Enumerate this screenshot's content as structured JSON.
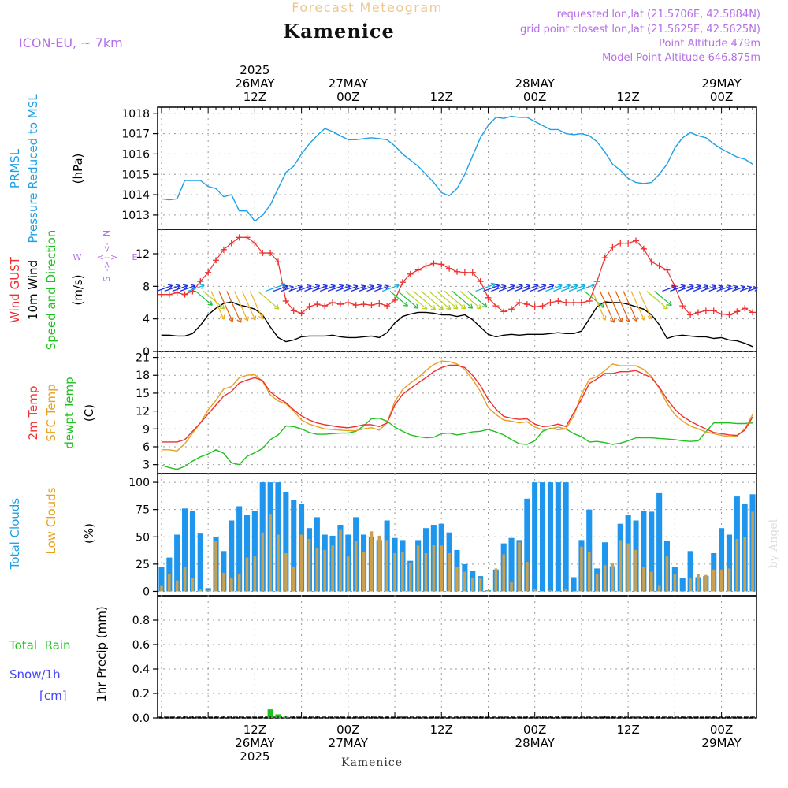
{
  "header": {
    "forecast_title": "Forecast Meteogram",
    "location": "Kamenice",
    "model": "ICON-EU, ~ 7km",
    "requested": "requested lon,lat (21.5706E, 42.5884N)",
    "grid_point": "grid point closest lon,lat (21.5625E, 42.5625N)",
    "point_altitude": "Point Altitude 479m",
    "model_altitude": "Model Point Altitude 646.875m",
    "footer_location": "Kamenice",
    "watermark": "by Angel"
  },
  "colors": {
    "pressure": "#1ea0e6",
    "gust": "#ee3030",
    "wind": "#000000",
    "temp2m": "#ee3030",
    "sfc_temp": "#e8a020",
    "dewpoint": "#20c020",
    "total_clouds": "#1e96ee",
    "low_clouds": "#c8a050",
    "rain": "#20c020",
    "snow": "#4444ff",
    "purple": "#b46ee6"
  },
  "time_axis": {
    "top_labels": [
      {
        "t": 12,
        "lines": [
          "2025",
          "26MAY",
          "12Z"
        ]
      },
      {
        "t": 24,
        "lines": [
          "27MAY",
          "00Z"
        ]
      },
      {
        "t": 36,
        "lines": [
          "12Z"
        ]
      },
      {
        "t": 48,
        "lines": [
          "28MAY",
          "00Z"
        ]
      },
      {
        "t": 60,
        "lines": [
          "12Z"
        ]
      },
      {
        "t": 72,
        "lines": [
          "29MAY",
          "00Z"
        ]
      }
    ],
    "bottom_labels": [
      {
        "t": 12,
        "lines": [
          "12Z",
          "26MAY",
          "2025"
        ]
      },
      {
        "t": 24,
        "lines": [
          "00Z",
          "27MAY"
        ]
      },
      {
        "t": 36,
        "lines": [
          "12Z"
        ]
      },
      {
        "t": 48,
        "lines": [
          "00Z",
          "28MAY"
        ]
      },
      {
        "t": 60,
        "lines": [
          "12Z"
        ]
      },
      {
        "t": 72,
        "lines": [
          "00Z",
          "29MAY"
        ]
      }
    ]
  },
  "panels": {
    "pressure": {
      "labels": [
        "PRMSL",
        "Pressure Reduced to MSL"
      ],
      "unit": "(hPa)"
    },
    "wind": {
      "gust_label": "Wind GUST",
      "wind_label": "10m Wind",
      "dir_label": "Speed and Direction",
      "unit": "(m/s)",
      "compass": {
        "n": "N",
        "s": "S",
        "e": "E",
        "w": "W"
      }
    },
    "temp": {
      "t2m_label": "2m Temp",
      "sfc_label": "SFC Temp",
      "dew_label": "dewpt Temp",
      "unit": "(C)"
    },
    "clouds": {
      "total_label": "Total Clouds",
      "low_label": "Low Clouds",
      "unit": "(%)"
    },
    "precip": {
      "rain_label": "Total  Rain",
      "snow_label": "Snow/1h",
      "cm_label": "[cm]",
      "axis_label": "1hr Precip (mm)"
    }
  },
  "chart_data": [
    {
      "type": "line",
      "name": "pressure",
      "ylabel": "(hPa)",
      "ylim": [
        1012.3,
        1018.3
      ],
      "yticks": [
        1013,
        1014,
        1015,
        1016,
        1017,
        1018
      ],
      "grid": true,
      "x": [
        0,
        1,
        2,
        3,
        4,
        5,
        6,
        7,
        8,
        9,
        10,
        11,
        12,
        13,
        14,
        15,
        16,
        17,
        18,
        19,
        20,
        21,
        22,
        23,
        24,
        25,
        26,
        27,
        28,
        29,
        30,
        31,
        32,
        33,
        34,
        35,
        36,
        37,
        38,
        39,
        40,
        41,
        42,
        43,
        44,
        45,
        46,
        47,
        48,
        49,
        50,
        51,
        52,
        53,
        54,
        55,
        56,
        57,
        58,
        59,
        60,
        61,
        62,
        63,
        64,
        65,
        66,
        67,
        68,
        69,
        70,
        71,
        72,
        73,
        74,
        75,
        76
      ],
      "series": [
        {
          "name": "PRMSL",
          "values": [
            1013.8,
            1013.75,
            1013.8,
            1014.7,
            1014.7,
            1014.7,
            1014.4,
            1014.3,
            1013.9,
            1014.0,
            1013.2,
            1013.2,
            1012.7,
            1013.0,
            1013.5,
            1014.3,
            1015.1,
            1015.4,
            1016.0,
            1016.5,
            1016.9,
            1017.25,
            1017.1,
            1016.9,
            1016.7,
            1016.7,
            1016.75,
            1016.8,
            1016.75,
            1016.7,
            1016.4,
            1016.0,
            1015.7,
            1015.4,
            1015.0,
            1014.6,
            1014.1,
            1013.95,
            1014.3,
            1015.0,
            1015.9,
            1016.8,
            1017.4,
            1017.8,
            1017.75,
            1017.85,
            1017.8,
            1017.8,
            1017.6,
            1017.4,
            1017.2,
            1017.2,
            1017.0,
            1016.95,
            1017.0,
            1016.9,
            1016.6,
            1016.1,
            1015.5,
            1015.2,
            1014.8,
            1014.6,
            1014.55,
            1014.6,
            1015.0,
            1015.5,
            1016.3,
            1016.8,
            1017.05,
            1016.9,
            1016.8,
            1016.5,
            1016.25,
            1016.05,
            1015.85,
            1015.75,
            1015.5
          ]
        }
      ]
    },
    {
      "type": "line",
      "name": "wind",
      "ylabel": "(m/s)",
      "ylim": [
        0,
        15
      ],
      "yticks": [
        0,
        4,
        8,
        12
      ],
      "grid": true,
      "x": [
        0,
        1,
        2,
        3,
        4,
        5,
        6,
        7,
        8,
        9,
        10,
        11,
        12,
        13,
        14,
        15,
        16,
        17,
        18,
        19,
        20,
        21,
        22,
        23,
        24,
        25,
        26,
        27,
        28,
        29,
        30,
        31,
        32,
        33,
        34,
        35,
        36,
        37,
        38,
        39,
        40,
        41,
        42,
        43,
        44,
        45,
        46,
        47,
        48,
        49,
        50,
        51,
        52,
        53,
        54,
        55,
        56,
        57,
        58,
        59,
        60,
        61,
        62,
        63,
        64,
        65,
        66,
        67,
        68,
        69,
        70,
        71,
        72,
        73,
        74,
        75,
        76
      ],
      "series": [
        {
          "name": "Wind GUST",
          "values": [
            7.0,
            7.0,
            7.2,
            7.0,
            7.4,
            8.6,
            9.7,
            11.2,
            12.5,
            13.3,
            14.0,
            14.0,
            13.3,
            12.1,
            12.1,
            11.0,
            6.2,
            5.0,
            4.7,
            5.5,
            5.8,
            5.6,
            6.0,
            5.8,
            6.0,
            5.7,
            5.8,
            5.7,
            5.9,
            5.6,
            6.3,
            8.5,
            9.5,
            10.0,
            10.5,
            10.8,
            10.7,
            10.2,
            9.8,
            9.7,
            9.7,
            8.6,
            6.6,
            5.6,
            4.9,
            5.2,
            6.0,
            5.8,
            5.5,
            5.6,
            6.0,
            6.2,
            6.0,
            6.0,
            6.0,
            6.2,
            8.6,
            11.5,
            12.8,
            13.3,
            13.3,
            13.6,
            12.6,
            11.0,
            10.5,
            10.0,
            8.0,
            5.6,
            4.5,
            4.8,
            5.0,
            5.0,
            4.6,
            4.5,
            4.9,
            5.3,
            4.8
          ]
        },
        {
          "name": "10m Wind",
          "values": [
            2.0,
            2.0,
            1.9,
            1.9,
            2.2,
            3.2,
            4.5,
            5.3,
            5.9,
            6.1,
            5.7,
            5.5,
            5.2,
            4.5,
            3.0,
            1.7,
            1.2,
            1.4,
            1.8,
            1.9,
            1.9,
            1.9,
            2.0,
            1.8,
            1.7,
            1.7,
            1.8,
            1.9,
            1.7,
            2.3,
            3.5,
            4.3,
            4.6,
            4.8,
            4.8,
            4.7,
            4.5,
            4.5,
            4.3,
            4.5,
            3.9,
            3.0,
            2.1,
            1.8,
            2.0,
            2.1,
            2.0,
            2.1,
            2.1,
            2.1,
            2.2,
            2.3,
            2.2,
            2.2,
            2.5,
            4.0,
            5.5,
            6.1,
            6.0,
            6.0,
            5.8,
            5.5,
            5.2,
            4.5,
            3.3,
            1.6,
            1.9,
            2.0,
            1.9,
            1.8,
            1.8,
            1.6,
            1.7,
            1.4,
            1.3,
            1.0,
            0.6
          ]
        }
      ]
    },
    {
      "type": "line",
      "name": "temperature",
      "ylabel": "(C)",
      "ylim": [
        1.5,
        22
      ],
      "yticks": [
        3,
        6,
        9,
        12,
        15,
        18,
        21
      ],
      "grid": true,
      "x": [
        0,
        1,
        2,
        3,
        4,
        5,
        6,
        7,
        8,
        9,
        10,
        11,
        12,
        13,
        14,
        15,
        16,
        17,
        18,
        19,
        20,
        21,
        22,
        23,
        24,
        25,
        26,
        27,
        28,
        29,
        30,
        31,
        32,
        33,
        34,
        35,
        36,
        37,
        38,
        39,
        40,
        41,
        42,
        43,
        44,
        45,
        46,
        47,
        48,
        49,
        50,
        51,
        52,
        53,
        54,
        55,
        56,
        57,
        58,
        59,
        60,
        61,
        62,
        63,
        64,
        65,
        66,
        67,
        68,
        69,
        70,
        71,
        72,
        73,
        74,
        75,
        76
      ],
      "series": [
        {
          "name": "2m Temp",
          "values": [
            6.8,
            6.8,
            6.8,
            7.2,
            8.6,
            10.0,
            11.5,
            13.0,
            14.5,
            15.3,
            16.7,
            17.2,
            17.6,
            17.1,
            15.2,
            14.2,
            13.4,
            12.2,
            11.2,
            10.5,
            10.0,
            9.7,
            9.5,
            9.3,
            9.2,
            9.4,
            9.7,
            9.7,
            9.4,
            10.0,
            13.0,
            14.8,
            15.8,
            16.7,
            17.6,
            18.6,
            19.3,
            19.7,
            19.7,
            19.3,
            18.0,
            16.3,
            14.0,
            12.3,
            11.1,
            10.8,
            10.6,
            10.7,
            9.8,
            9.4,
            9.5,
            9.8,
            9.4,
            11.7,
            14.0,
            16.6,
            17.4,
            18.3,
            18.3,
            18.6,
            18.6,
            18.8,
            18.2,
            17.6,
            16.0,
            14.0,
            12.3,
            11.1,
            10.3,
            9.6,
            9.0,
            8.4,
            8.2,
            8.0,
            7.9,
            8.8,
            11.0
          ]
        },
        {
          "name": "SFC Temp",
          "values": [
            5.5,
            5.5,
            5.3,
            6.5,
            8.3,
            10.0,
            12.2,
            13.8,
            15.7,
            16.1,
            17.6,
            18.0,
            18.1,
            17.0,
            14.7,
            13.7,
            13.2,
            12.0,
            10.5,
            9.8,
            9.4,
            9.0,
            8.9,
            8.8,
            8.7,
            8.7,
            9.0,
            9.2,
            8.8,
            10.0,
            13.6,
            15.6,
            16.7,
            17.6,
            18.8,
            19.8,
            20.4,
            20.3,
            19.9,
            19.0,
            17.3,
            15.3,
            12.6,
            11.4,
            10.5,
            10.3,
            10.0,
            10.2,
            9.3,
            8.9,
            9.0,
            9.3,
            9.0,
            11.2,
            14.8,
            17.3,
            17.8,
            18.8,
            19.9,
            19.6,
            19.6,
            19.6,
            19.0,
            17.8,
            15.8,
            13.3,
            11.4,
            10.3,
            9.5,
            9.0,
            8.5,
            8.2,
            7.9,
            7.7,
            7.8,
            9.0,
            11.4
          ]
        },
        {
          "name": "dewpt Temp",
          "values": [
            2.9,
            2.5,
            2.2,
            2.7,
            3.6,
            4.3,
            4.8,
            5.5,
            4.9,
            3.3,
            3.0,
            4.4,
            5.0,
            5.7,
            7.2,
            8.0,
            9.5,
            9.4,
            9.0,
            8.4,
            8.1,
            8.1,
            8.2,
            8.3,
            8.3,
            8.6,
            9.5,
            10.7,
            10.8,
            10.3,
            9.3,
            8.6,
            8.0,
            7.7,
            7.5,
            7.6,
            8.2,
            8.3,
            8.0,
            8.2,
            8.5,
            8.6,
            8.9,
            8.5,
            8.0,
            7.2,
            6.5,
            6.4,
            7.0,
            8.6,
            9.1,
            8.9,
            9.0,
            8.2,
            7.7,
            6.8,
            6.9,
            6.7,
            6.4,
            6.6,
            7.0,
            7.5,
            7.5,
            7.5,
            7.4,
            7.3,
            7.2,
            7.0,
            6.9,
            7.0,
            8.5,
            10.0,
            10.0,
            10.0,
            9.9,
            9.9,
            10.0
          ]
        }
      ]
    },
    {
      "type": "bar",
      "name": "clouds",
      "ylabel": "(%)",
      "ylim": [
        -4,
        108
      ],
      "yticks": [
        0,
        25,
        50,
        75,
        100
      ],
      "grid": true,
      "x": [
        0,
        1,
        2,
        3,
        4,
        5,
        6,
        7,
        8,
        9,
        10,
        11,
        12,
        13,
        14,
        15,
        16,
        17,
        18,
        19,
        20,
        21,
        22,
        23,
        24,
        25,
        26,
        27,
        28,
        29,
        30,
        31,
        32,
        33,
        34,
        35,
        36,
        37,
        38,
        39,
        40,
        41,
        42,
        43,
        44,
        45,
        46,
        47,
        48,
        49,
        50,
        51,
        52,
        53,
        54,
        55,
        56,
        57,
        58,
        59,
        60,
        61,
        62,
        63,
        64,
        65,
        66,
        67,
        68,
        69,
        70,
        71,
        72,
        73,
        74,
        75,
        76
      ],
      "series": [
        {
          "name": "Total Clouds",
          "values": [
            22,
            31,
            52,
            76,
            74,
            53,
            3,
            50,
            37,
            65,
            78,
            70,
            74,
            100,
            100,
            100,
            91,
            84,
            80,
            58,
            68,
            52,
            51,
            61,
            52,
            68,
            52,
            50,
            47,
            65,
            49,
            47,
            28,
            47,
            58,
            61,
            62,
            54,
            38,
            25,
            19,
            14,
            1,
            20,
            44,
            49,
            47,
            85,
            100,
            100,
            100,
            100,
            100,
            13,
            47,
            75,
            21,
            45,
            23,
            62,
            70,
            65,
            74,
            73,
            90,
            46,
            22,
            12,
            37,
            13,
            14,
            35,
            58,
            52,
            87,
            80,
            89
          ]
        },
        {
          "name": "Low Clouds",
          "values": [
            5,
            16,
            10,
            22,
            12,
            2,
            1,
            46,
            17,
            12,
            16,
            31,
            32,
            54,
            71,
            52,
            35,
            22,
            52,
            48,
            40,
            38,
            42,
            57,
            32,
            46,
            36,
            55,
            51,
            47,
            35,
            36,
            26,
            42,
            35,
            43,
            42,
            35,
            22,
            18,
            12,
            12,
            1,
            21,
            34,
            9,
            45,
            27,
            2,
            0,
            1,
            0,
            2,
            0,
            41,
            36,
            16,
            24,
            26,
            47,
            44,
            38,
            22,
            18,
            5,
            32,
            16,
            0,
            12,
            16,
            15,
            20,
            20,
            21,
            48,
            50,
            73
          ]
        }
      ]
    },
    {
      "type": "bar",
      "name": "precipitation",
      "ylabel": "1hr Precip (mm)",
      "ylim": [
        0,
        1.0
      ],
      "yticks": [
        0,
        0.2,
        0.4,
        0.6,
        0.8
      ],
      "grid": true,
      "x": [
        14,
        15,
        16
      ],
      "series": [
        {
          "name": "Total Rain",
          "values": [
            0.07,
            0.03,
            0.01
          ]
        }
      ]
    }
  ]
}
